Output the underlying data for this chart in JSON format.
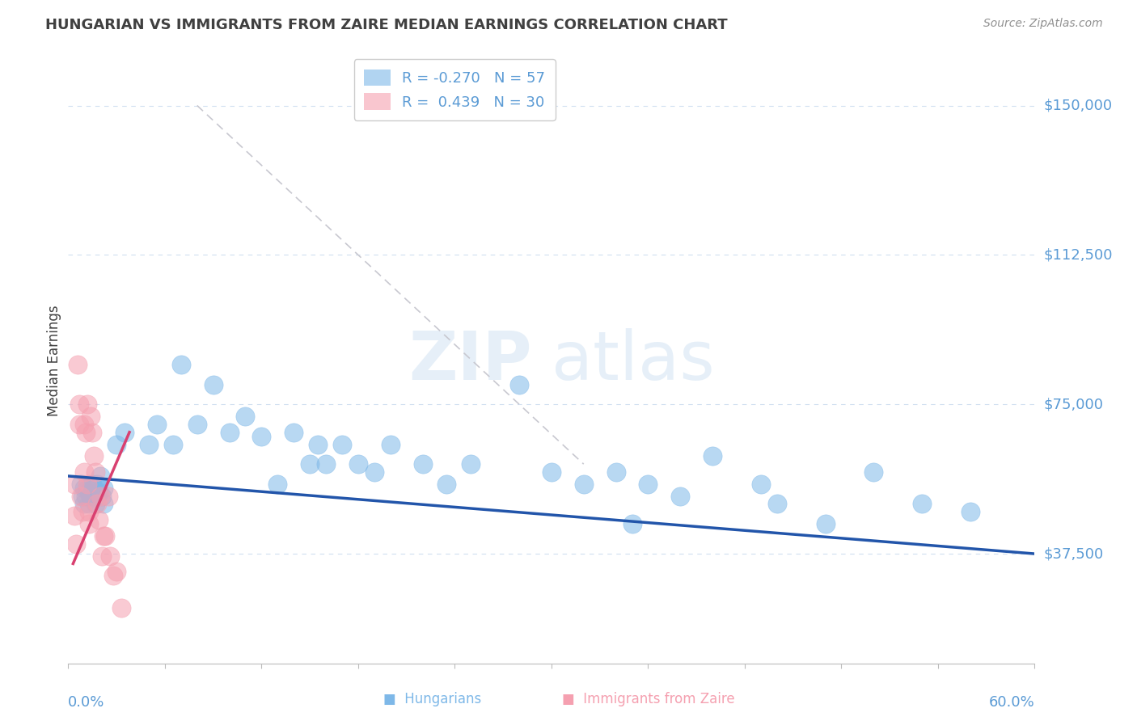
{
  "title": "HUNGARIAN VS IMMIGRANTS FROM ZAIRE MEDIAN EARNINGS CORRELATION CHART",
  "source": "Source: ZipAtlas.com",
  "ylabel": "Median Earnings",
  "yticks": [
    0,
    37500,
    75000,
    112500,
    150000
  ],
  "ytick_labels": [
    "",
    "$37,500",
    "$75,000",
    "$112,500",
    "$150,000"
  ],
  "xlim": [
    0.0,
    0.6
  ],
  "ylim": [
    10000,
    162000
  ],
  "xtick_count": 10,
  "watermark": "ZIPatlas",
  "blue_R": -0.27,
  "blue_N": 57,
  "pink_R": 0.439,
  "pink_N": 30,
  "blue_scatter_x": [
    0.008,
    0.009,
    0.01,
    0.01,
    0.011,
    0.012,
    0.013,
    0.013,
    0.014,
    0.015,
    0.016,
    0.016,
    0.017,
    0.018,
    0.018,
    0.019,
    0.02,
    0.021,
    0.022,
    0.022,
    0.03,
    0.035,
    0.05,
    0.055,
    0.065,
    0.07,
    0.08,
    0.09,
    0.1,
    0.11,
    0.12,
    0.13,
    0.14,
    0.15,
    0.155,
    0.16,
    0.17,
    0.18,
    0.19,
    0.2,
    0.22,
    0.235,
    0.25,
    0.28,
    0.3,
    0.32,
    0.34,
    0.36,
    0.38,
    0.4,
    0.43,
    0.47,
    0.5,
    0.53,
    0.56,
    0.35,
    0.44
  ],
  "blue_scatter_y": [
    55000,
    52000,
    54000,
    50000,
    52000,
    54000,
    50000,
    53000,
    52000,
    55000,
    52000,
    54000,
    50000,
    55000,
    52000,
    53000,
    57000,
    52000,
    50000,
    54000,
    65000,
    68000,
    65000,
    70000,
    65000,
    85000,
    70000,
    80000,
    68000,
    72000,
    67000,
    55000,
    68000,
    60000,
    65000,
    60000,
    65000,
    60000,
    58000,
    65000,
    60000,
    55000,
    60000,
    80000,
    58000,
    55000,
    58000,
    55000,
    52000,
    62000,
    55000,
    45000,
    58000,
    50000,
    48000,
    45000,
    50000
  ],
  "pink_scatter_x": [
    0.004,
    0.004,
    0.005,
    0.006,
    0.007,
    0.007,
    0.008,
    0.009,
    0.01,
    0.01,
    0.011,
    0.012,
    0.012,
    0.013,
    0.013,
    0.014,
    0.015,
    0.016,
    0.017,
    0.018,
    0.019,
    0.02,
    0.021,
    0.022,
    0.023,
    0.025,
    0.026,
    0.028,
    0.03,
    0.033
  ],
  "pink_scatter_y": [
    55000,
    47000,
    40000,
    85000,
    70000,
    75000,
    52000,
    48000,
    58000,
    70000,
    68000,
    55000,
    75000,
    48000,
    45000,
    72000,
    68000,
    62000,
    58000,
    50000,
    46000,
    52000,
    37000,
    42000,
    42000,
    52000,
    37000,
    32000,
    33000,
    24000
  ],
  "blue_line_x": [
    0.0,
    0.6
  ],
  "blue_line_y": [
    57000,
    37500
  ],
  "pink_line_x": [
    0.003,
    0.038
  ],
  "pink_line_y": [
    35000,
    68000
  ],
  "gray_line_x": [
    0.08,
    0.32
  ],
  "gray_line_y": [
    150000,
    60000
  ],
  "blue_color": "#7eb8e8",
  "pink_color": "#f5a0b0",
  "blue_line_color": "#2255aa",
  "pink_line_color": "#d94070",
  "gray_line_color": "#c8c8d0",
  "grid_color": "#d0dff0",
  "tick_color": "#5b9bd5",
  "title_color": "#404040",
  "source_color": "#909090",
  "legend_edge_color": "#cccccc",
  "bg_color": "#ffffff"
}
